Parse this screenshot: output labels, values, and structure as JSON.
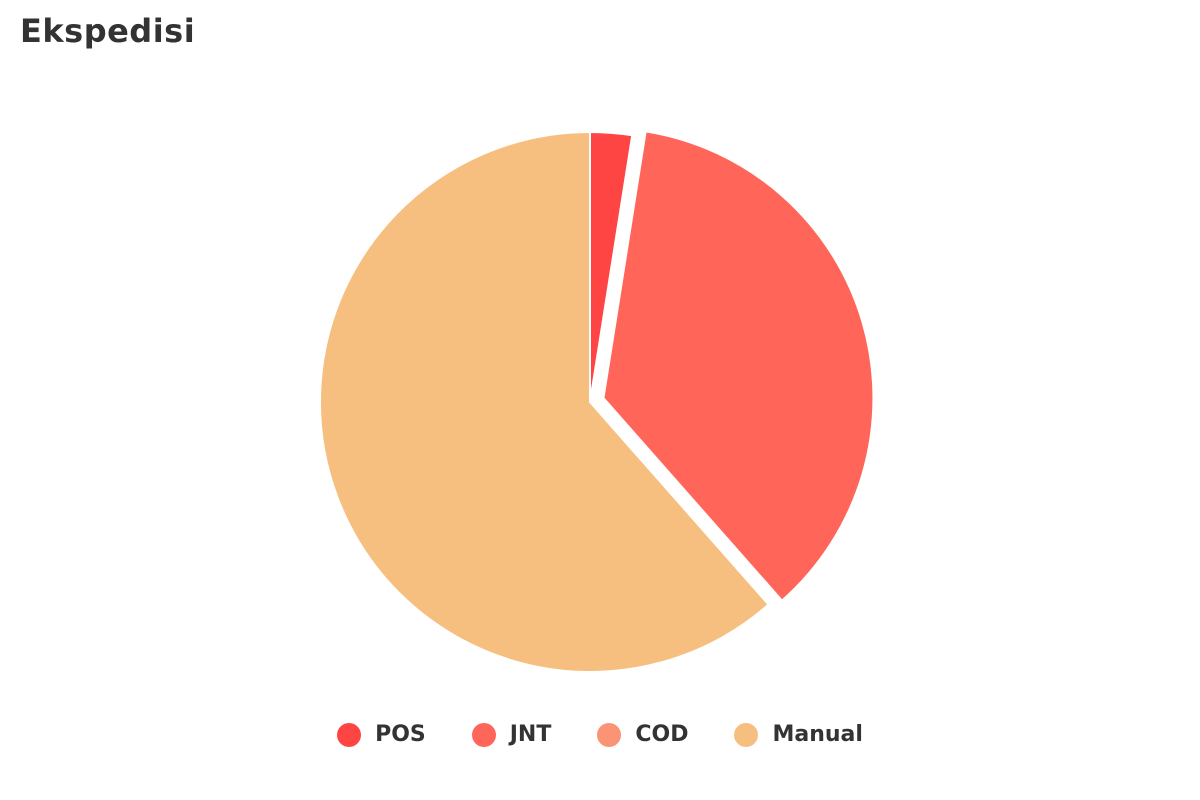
{
  "chart_data": {
    "type": "pie",
    "title": "Ekspedisi",
    "categories": [
      "POS",
      "JNT",
      "COD",
      "Manual"
    ],
    "values": [
      2.5,
      36.0,
      0,
      61.5
    ],
    "colors": [
      "#FF4444",
      "#FF6659",
      "#FA9474",
      "#F7BF7F"
    ],
    "exploded": "JNT",
    "legend_position": "bottom"
  }
}
